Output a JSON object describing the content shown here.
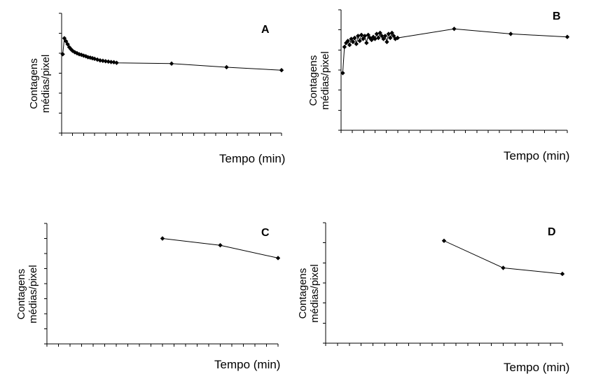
{
  "chart_data": [
    {
      "type": "line",
      "panel_label": "A",
      "ylabel": "Contagens médias/pixel",
      "xlabel": "Tempo (min)",
      "grid": false,
      "legend": "none",
      "xlim": [
        0,
        40
      ],
      "ylim": [
        0,
        6
      ],
      "series": [
        {
          "x": [
            0.2,
            0.5,
            0.8,
            1.1,
            1.4,
            1.7,
            2.0,
            2.4,
            2.8,
            3.2,
            3.6,
            4.0,
            4.4,
            4.8,
            5.2,
            5.6,
            6.0,
            6.5,
            7.0,
            7.5,
            8.0,
            8.5,
            9.0,
            9.5,
            10,
            20,
            30,
            40
          ],
          "y": [
            3.95,
            4.75,
            4.6,
            4.45,
            4.3,
            4.2,
            4.12,
            4.05,
            4.0,
            3.95,
            3.92,
            3.88,
            3.85,
            3.8,
            3.78,
            3.75,
            3.72,
            3.68,
            3.64,
            3.62,
            3.6,
            3.58,
            3.56,
            3.55,
            3.52,
            3.48,
            3.3,
            3.15
          ]
        }
      ]
    },
    {
      "type": "line",
      "panel_label": "B",
      "ylabel": "Contagens médias/pixel",
      "xlabel": "Tempo (min)",
      "grid": false,
      "legend": "none",
      "xlim": [
        0,
        40
      ],
      "ylim": [
        0,
        6
      ],
      "series": [
        {
          "x": [
            0.3,
            0.6,
            0.9,
            1.2,
            1.5,
            1.8,
            2.1,
            2.4,
            2.7,
            3.0,
            3.3,
            3.6,
            3.9,
            4.2,
            4.5,
            4.8,
            5.1,
            5.4,
            5.7,
            6.0,
            6.3,
            6.6,
            6.9,
            7.2,
            7.5,
            7.8,
            8.1,
            8.4,
            8.7,
            9.0,
            9.3,
            9.6,
            10,
            20,
            30,
            40
          ],
          "y": [
            2.85,
            4.15,
            4.35,
            4.45,
            4.25,
            4.55,
            4.4,
            4.6,
            4.3,
            4.7,
            4.45,
            4.75,
            4.55,
            4.7,
            4.35,
            4.75,
            4.6,
            4.5,
            4.65,
            4.55,
            4.8,
            4.6,
            4.85,
            4.7,
            4.55,
            4.7,
            4.4,
            4.8,
            4.6,
            4.85,
            4.7,
            4.55,
            4.6,
            5.05,
            4.8,
            4.65
          ]
        }
      ]
    },
    {
      "type": "line",
      "panel_label": "C",
      "ylabel": "Contagens médias/pixel",
      "xlabel": "Tempo (min)",
      "grid": false,
      "legend": "none",
      "xlim": [
        0,
        40
      ],
      "ylim": [
        0,
        8
      ],
      "series": [
        {
          "x": [
            20,
            30,
            40
          ],
          "y": [
            7,
            6.55,
            5.7
          ]
        }
      ]
    },
    {
      "type": "line",
      "panel_label": "D",
      "ylabel": "Contagens médias/pixel",
      "xlabel": "Tempo (min)",
      "grid": false,
      "legend": "none",
      "xlim": [
        0,
        40
      ],
      "ylim": [
        0,
        6
      ],
      "series": [
        {
          "x": [
            20,
            30,
            40
          ],
          "y": [
            5.1,
            3.75,
            3.45
          ]
        }
      ]
    }
  ]
}
